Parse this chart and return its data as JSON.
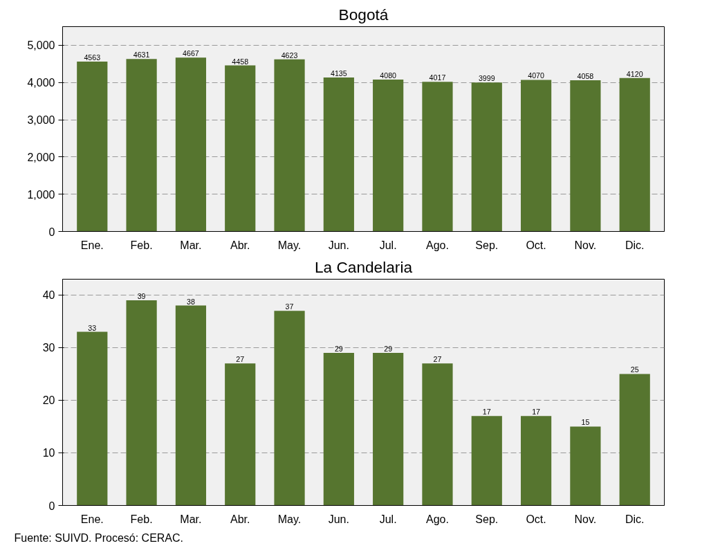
{
  "chart_data": [
    {
      "type": "bar",
      "title": "Bogotá",
      "categories": [
        "Ene.",
        "Feb.",
        "Mar.",
        "Abr.",
        "May.",
        "Jun.",
        "Jul.",
        "Ago.",
        "Sep.",
        "Oct.",
        "Nov.",
        "Dic."
      ],
      "series": [
        {
          "color": "#56752f",
          "values": [
            4563,
            4631,
            4667,
            4458,
            4623,
            4135,
            4080,
            4017,
            3999,
            4070,
            4058,
            4120
          ]
        }
      ],
      "ylim": [
        0,
        5500
      ],
      "yticks": [
        {
          "value": 0,
          "label": "0"
        },
        {
          "value": 1000,
          "label": "1,000"
        },
        {
          "value": 2000,
          "label": "2,000"
        },
        {
          "value": 3000,
          "label": "3,000"
        },
        {
          "value": 4000,
          "label": "4,000"
        },
        {
          "value": 5000,
          "label": "5,000"
        }
      ],
      "grid": "y",
      "data_labels": true
    },
    {
      "type": "bar",
      "title": "La Candelaria",
      "categories": [
        "Ene.",
        "Feb.",
        "Mar.",
        "Abr.",
        "May.",
        "Jun.",
        "Jul.",
        "Ago.",
        "Sep.",
        "Oct.",
        "Nov.",
        "Dic."
      ],
      "series": [
        {
          "color": "#56752f",
          "values": [
            33,
            39,
            38,
            27,
            37,
            29,
            29,
            27,
            17,
            17,
            15,
            25
          ]
        }
      ],
      "ylim": [
        0,
        43
      ],
      "yticks": [
        0,
        10,
        20,
        30,
        40
      ],
      "grid": "y",
      "data_labels": true,
      "annotations": [
        "Fuente: SUIVD. Procesó: CERAC."
      ]
    }
  ]
}
